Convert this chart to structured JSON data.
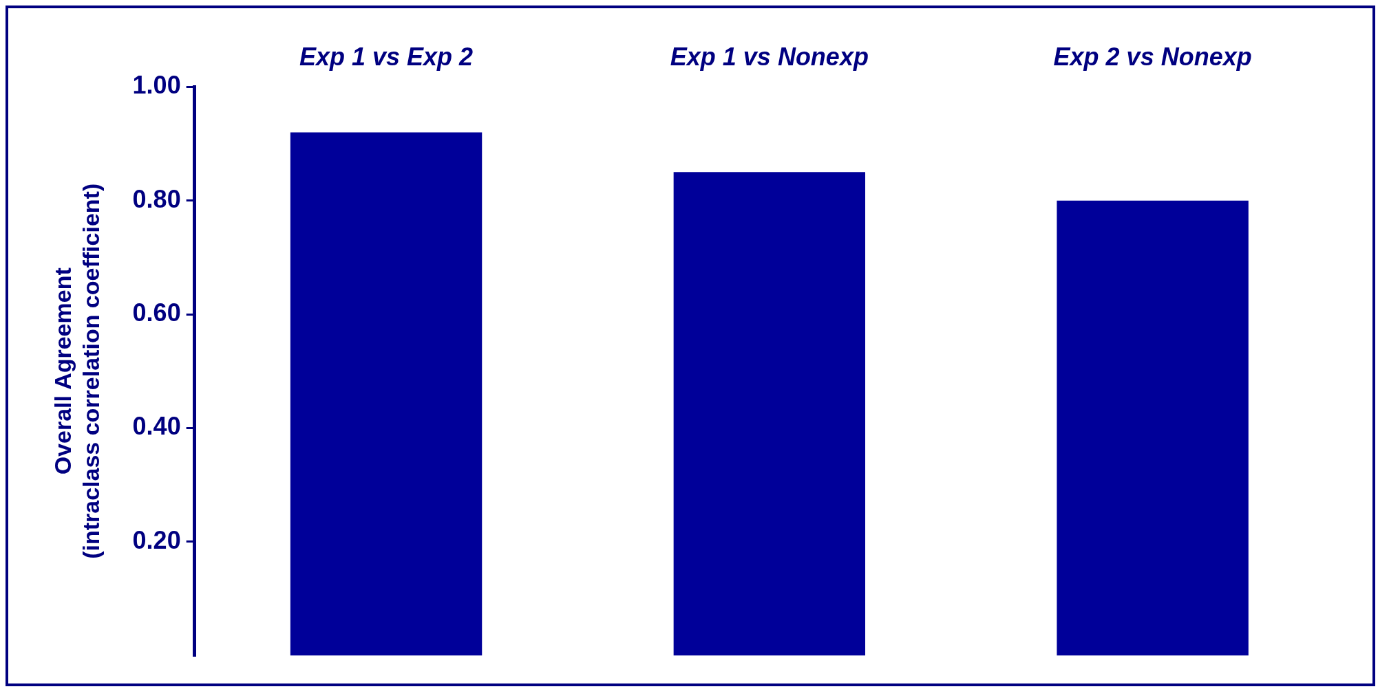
{
  "chart_data": {
    "type": "bar",
    "ylabel": "Overall Agreement\n(intraclass correlation coefficient)",
    "categories": [
      "Exp 1 vs Exp 2",
      "Exp 1 vs Nonexp",
      "Exp 2 vs Nonexp"
    ],
    "values": [
      0.92,
      0.85,
      0.8
    ],
    "color": "#000099",
    "ylim": [
      0,
      1
    ],
    "yticks": [
      {
        "value": 0.2,
        "label": "0.20"
      },
      {
        "value": 0.4,
        "label": "0.40"
      },
      {
        "value": 0.6,
        "label": "0.60"
      },
      {
        "value": 0.8,
        "label": "0.80"
      },
      {
        "value": 1,
        "label": "1.00"
      }
    ],
    "grid": false,
    "legend": false
  }
}
